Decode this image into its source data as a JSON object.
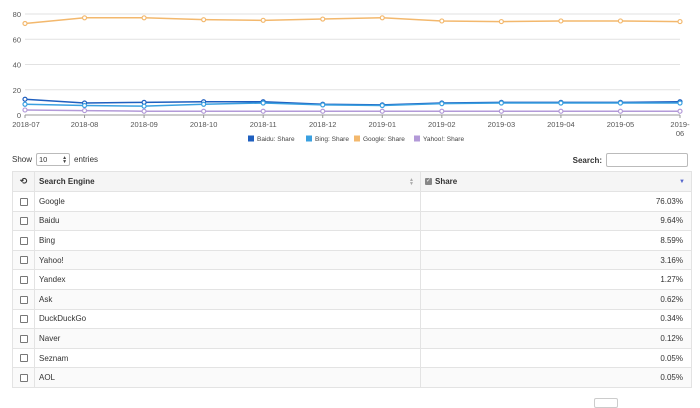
{
  "chart_data": {
    "type": "line",
    "x": [
      "2018-07",
      "2018-08",
      "2018-09",
      "2018-10",
      "2018-11",
      "2018-12",
      "2019-01",
      "2019-02",
      "2019-03",
      "2019-04",
      "2019-05",
      "2019-06"
    ],
    "x_tick_labels": [
      "2018-07",
      "2018-08",
      "2018-09",
      "2018-10",
      "2018-11",
      "2018-12",
      "2019-01",
      "2019-02",
      "2019-03",
      "2019-04",
      "2019-05",
      "2019-"
    ],
    "x_tick_labels_line2": [
      "",
      "",
      "",
      "",
      "",
      "",
      "",
      "",
      "",
      "",
      "",
      "06"
    ],
    "ylim": [
      0,
      80
    ],
    "yticks": [
      0,
      20,
      40,
      60,
      80
    ],
    "grid": true,
    "legend": "bottom",
    "series": [
      {
        "name": "Baidu: Share",
        "color": "#1f5fbf",
        "values": [
          12.5,
          9.5,
          10,
          10.5,
          10.5,
          8.5,
          8,
          9.5,
          10,
          10,
          10,
          10.5
        ]
      },
      {
        "name": "Bing: Share",
        "color": "#3aa0e0",
        "values": [
          8.5,
          7.5,
          7,
          8.5,
          9.5,
          8,
          7.5,
          9,
          9.5,
          9.5,
          9.5,
          9.5
        ]
      },
      {
        "name": "Google: Share",
        "color": "#f3b86d",
        "values": [
          72.5,
          77,
          77,
          75.5,
          75,
          76,
          77,
          74.5,
          74,
          74.5,
          74.5,
          74
        ]
      },
      {
        "name": "Yahoo!: Share",
        "color": "#b39ad8",
        "values": [
          4,
          3.5,
          3,
          3,
          3,
          3,
          3,
          3,
          3,
          3,
          3,
          3
        ]
      }
    ]
  },
  "controls": {
    "show_label": "Show",
    "entries_value": "10",
    "entries_label": "entries",
    "search_label": "Search:",
    "search_value": ""
  },
  "table": {
    "columns": {
      "engine": "Search Engine",
      "share": "Share"
    },
    "rows": [
      {
        "engine": "Google",
        "share": "76.03%"
      },
      {
        "engine": "Baidu",
        "share": "9.64%"
      },
      {
        "engine": "Bing",
        "share": "8.59%"
      },
      {
        "engine": "Yahoo!",
        "share": "3.16%"
      },
      {
        "engine": "Yandex",
        "share": "1.27%"
      },
      {
        "engine": "Ask",
        "share": "0.62%"
      },
      {
        "engine": "DuckDuckGo",
        "share": "0.34%"
      },
      {
        "engine": "Naver",
        "share": "0.12%"
      },
      {
        "engine": "Seznam",
        "share": "0.05%"
      },
      {
        "engine": "AOL",
        "share": "0.05%"
      }
    ]
  }
}
